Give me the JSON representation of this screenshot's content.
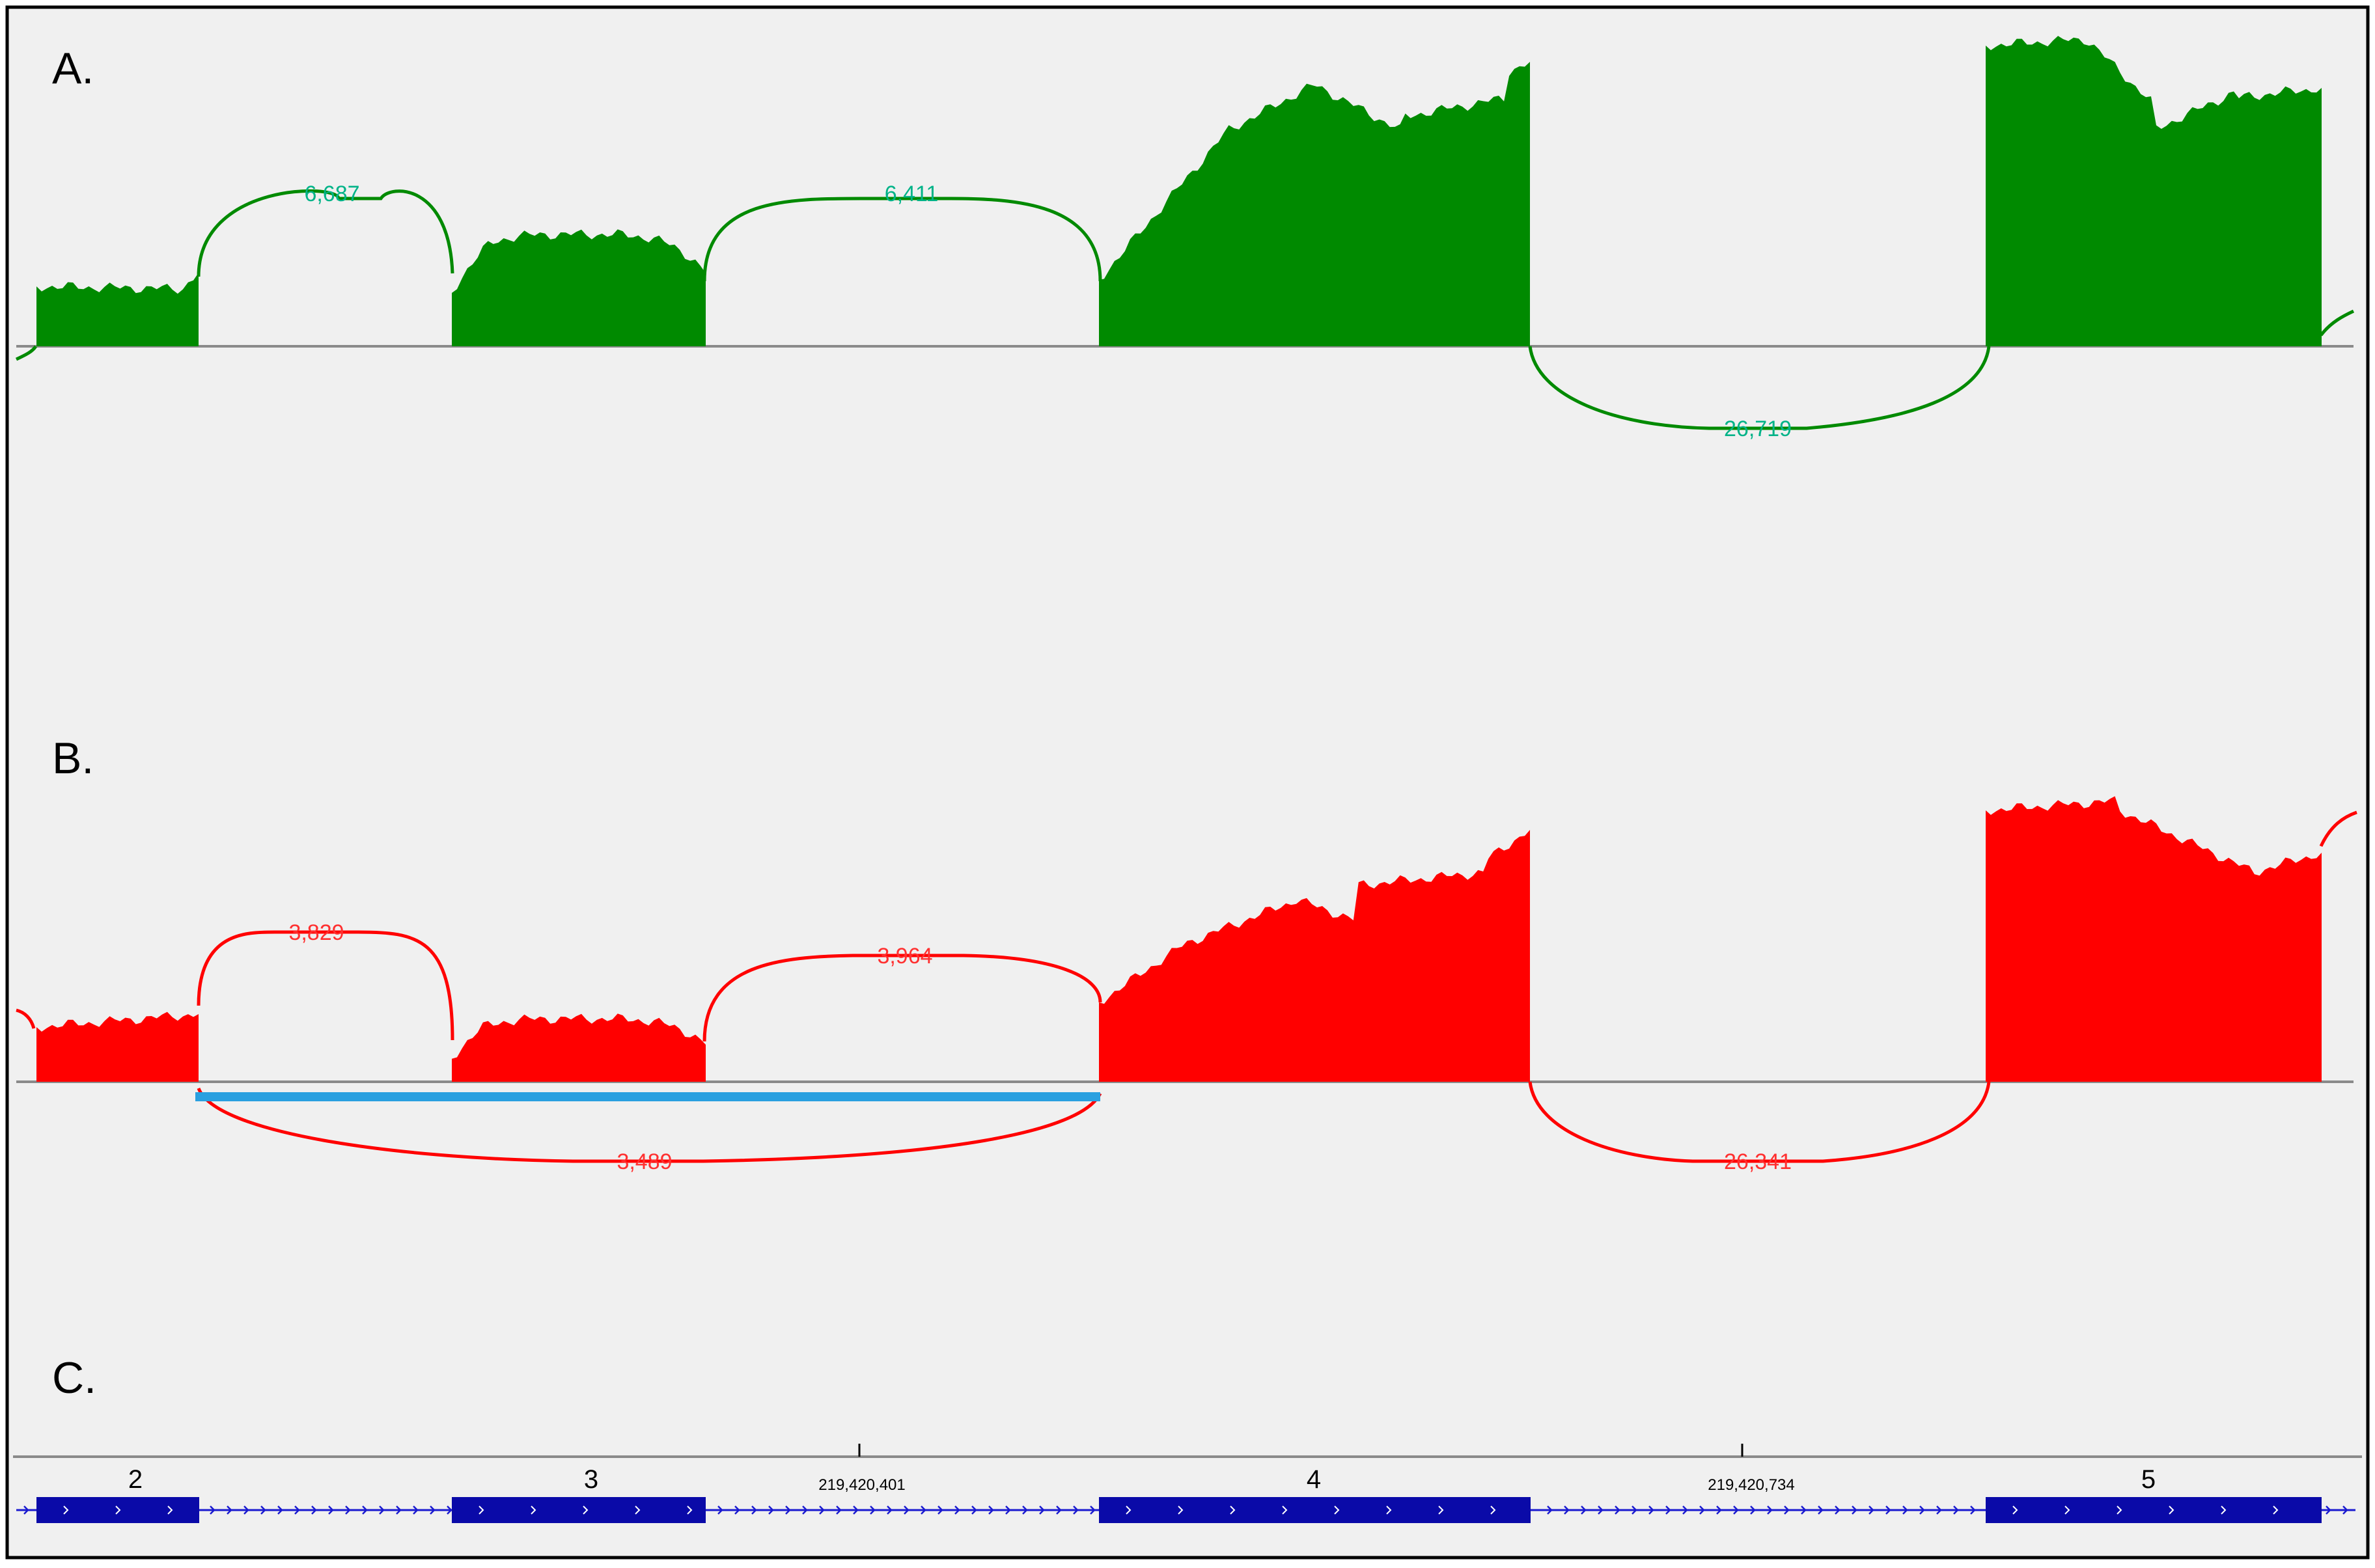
{
  "colors": {
    "panel_a": "#008a00",
    "panel_a_label": "#00b388",
    "panel_b": "#ff0000",
    "panel_b_label": "#ff3030",
    "highlight": "#2aa0e0",
    "exon": "#0a0aa8",
    "background": "#f0f0f0",
    "axis": "#8a8a8a"
  },
  "panels": {
    "a": {
      "label": "A.",
      "junctions": [
        {
          "count": "6,687"
        },
        {
          "count": "6,411"
        },
        {
          "count": "26,719"
        }
      ]
    },
    "b": {
      "label": "B.",
      "junctions": [
        {
          "count": "3,829"
        },
        {
          "count": "3,964"
        },
        {
          "count": "3,489"
        },
        {
          "count": "26,341"
        }
      ]
    },
    "c": {
      "label": "C.",
      "coordinates": [
        "219,420,401",
        "219,420,734"
      ],
      "exons": [
        {
          "number": "2"
        },
        {
          "number": "3"
        },
        {
          "number": "4"
        },
        {
          "number": "5"
        }
      ]
    }
  }
}
